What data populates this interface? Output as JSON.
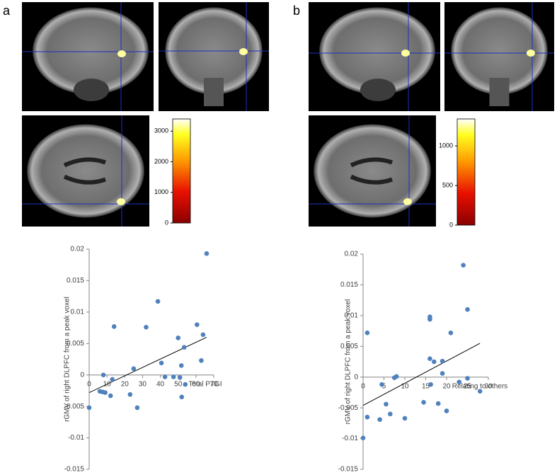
{
  "panel_labels": [
    "a",
    "b"
  ],
  "chart_data": [
    {
      "type": "scatter",
      "x_label": "Total PTGI",
      "y_label": "rGMV of right DLPFC from a peak voxel",
      "color": "#4f81bd",
      "x": [
        0,
        6,
        7.5,
        8,
        9,
        12,
        13,
        14,
        25,
        23,
        27,
        32,
        38.6,
        40.6,
        42.6,
        47.4,
        50,
        51,
        51.8,
        52,
        53.4,
        54,
        60.6,
        63,
        64,
        66
      ],
      "values": [
        -0.0052,
        -0.0026,
        -0.0027,
        0.0,
        -0.0028,
        -0.0033,
        -0.0007,
        0.0077,
        0.001,
        -0.0031,
        -0.0052,
        0.0076,
        0.0117,
        0.0019,
        -0.0003,
        -0.0003,
        0.0059,
        -0.0004,
        0.0015,
        -0.0035,
        0.0044,
        -0.0015,
        0.008,
        0.0023,
        0.0064,
        0.0193
      ],
      "trendline": {
        "x": [
          0,
          66
        ],
        "y": [
          -0.0028,
          0.006
        ]
      },
      "xlim": [
        0,
        70
      ],
      "xticks": [
        0,
        10,
        20,
        30,
        40,
        50,
        60,
        70
      ],
      "ylim": [
        -0.015,
        0.02
      ],
      "yticks": [
        -0.015,
        -0.01,
        -0.005,
        0,
        0.005,
        0.01,
        0.015,
        0.02
      ]
    },
    {
      "type": "scatter",
      "x_label": "Relating to others",
      "y_label": "rGMV of right DLPFC from a peak voxel",
      "color": "#4f81bd",
      "x": [
        0,
        1,
        1,
        4,
        4.5,
        5.5,
        6.5,
        7.5,
        8,
        10,
        14.5,
        16,
        16,
        16,
        16.2,
        17,
        18,
        19,
        19,
        20,
        21,
        23,
        24,
        25,
        25,
        28
      ],
      "values": [
        -0.0099,
        -0.0065,
        0.0072,
        -0.0069,
        -0.0012,
        -0.0044,
        -0.006,
        -0.0001,
        0.0001,
        -0.0067,
        -0.0041,
        0.0098,
        0.0094,
        0.003,
        -0.0012,
        0.0025,
        -0.0043,
        0.0026,
        0.0006,
        -0.0055,
        0.0072,
        -0.0008,
        0.0182,
        0.011,
        -0.0002,
        -0.0023
      ],
      "trendline": {
        "x": [
          0,
          28
        ],
        "y": [
          -0.0046,
          0.0055
        ]
      },
      "xlim": [
        0,
        30
      ],
      "xticks": [
        0,
        5,
        10,
        15,
        20,
        25,
        30
      ],
      "ylim": [
        -0.015,
        0.02
      ],
      "yticks": [
        -0.015,
        -0.01,
        -0.005,
        0,
        0.005,
        0.01,
        0.015,
        0.02
      ]
    },
    {
      "type": "colorbar",
      "ylim": [
        0,
        3400
      ],
      "yticks": [
        0,
        1000,
        2000,
        3000
      ]
    },
    {
      "type": "colorbar",
      "ylim": [
        0,
        1340
      ],
      "yticks": [
        0,
        500,
        1000
      ]
    }
  ]
}
